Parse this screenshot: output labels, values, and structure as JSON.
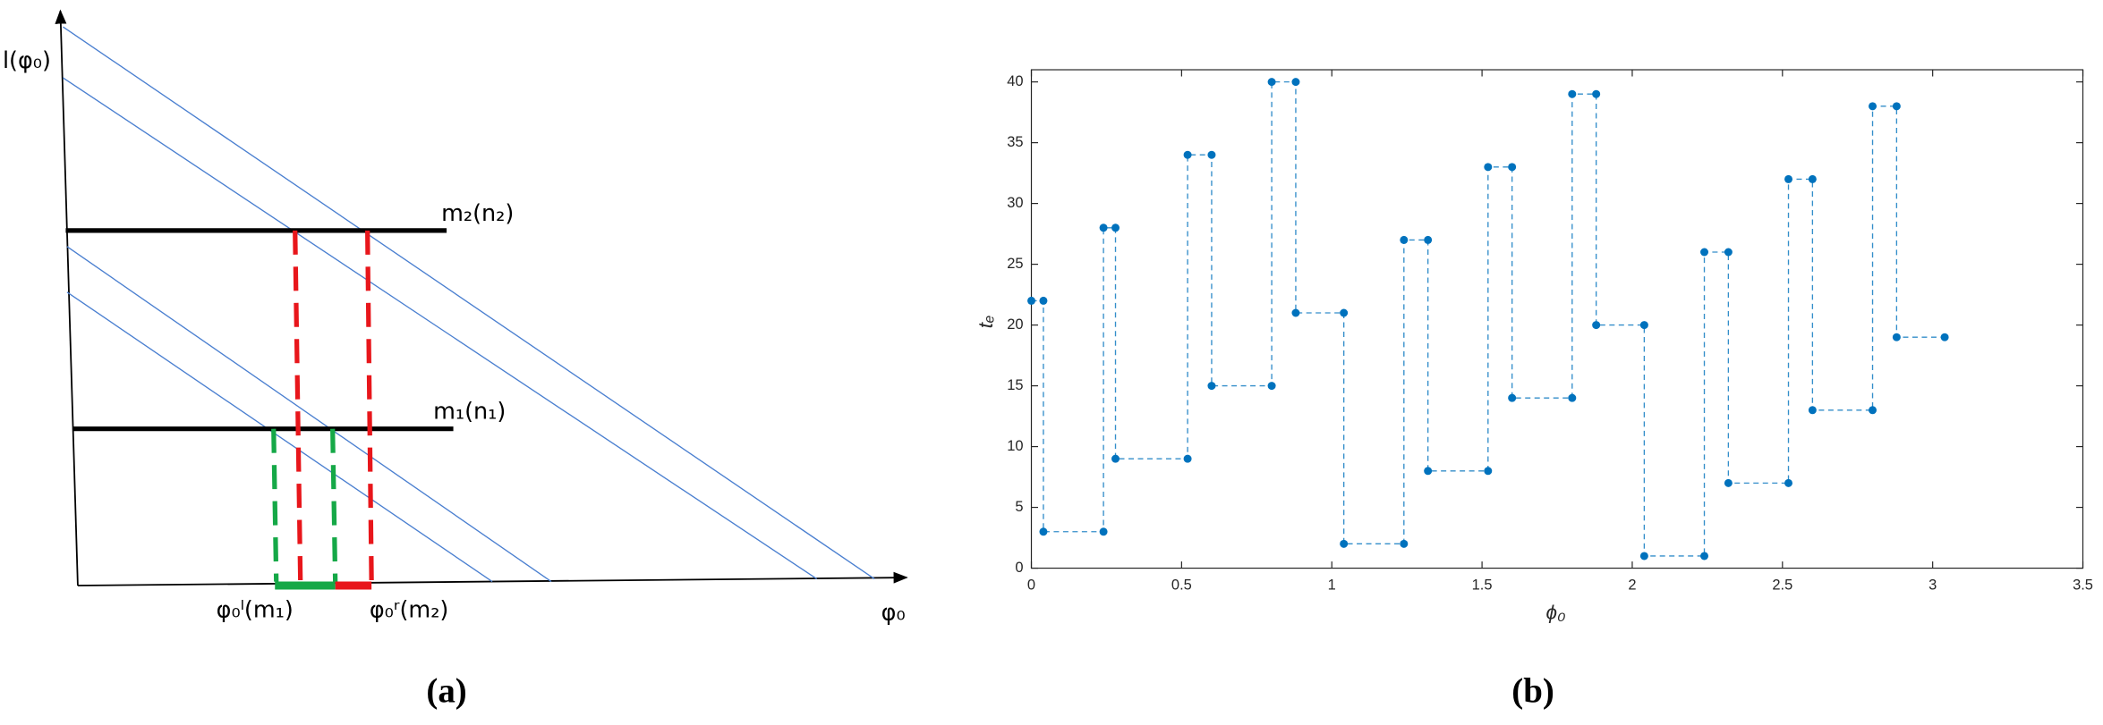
{
  "diagram": {
    "y_axis_label": "l(φ₀)",
    "upper_line_label": "m₂(n₂)",
    "lower_line_label": "m₁(n₁)",
    "left_bound_label": "φ₀ˡ(m₁)",
    "right_bound_label": "φ₀ʳ(m₂)",
    "x_axis_label": "φ₀",
    "panel_label": "(a)"
  },
  "chart_data": {
    "type": "scatter",
    "line": "dashed",
    "color": "#0072bd",
    "panel_label": "(b)",
    "x_label": "ϕ₀",
    "y_label": "tₑ",
    "x": [
      0,
      0.04,
      0.04,
      0.24,
      0.24,
      0.28,
      0.28,
      0.52,
      0.52,
      0.6,
      0.6,
      0.8,
      0.8,
      0.88,
      0.88,
      1.04,
      1.04,
      1.24,
      1.24,
      1.32,
      1.32,
      1.52,
      1.52,
      1.6,
      1.6,
      1.8,
      1.8,
      1.88,
      1.88,
      2.04,
      2.04,
      2.24,
      2.24,
      2.32,
      2.32,
      2.52,
      2.52,
      2.6,
      2.6,
      2.8,
      2.8,
      2.88,
      2.88,
      3.04
    ],
    "values": [
      22,
      22,
      3,
      3,
      28,
      28,
      9,
      9,
      34,
      34,
      15,
      15,
      40,
      40,
      21,
      21,
      2,
      2,
      27,
      27,
      8,
      8,
      33,
      33,
      14,
      14,
      39,
      39,
      20,
      20,
      1,
      1,
      26,
      26,
      7,
      7,
      32,
      32,
      13,
      13,
      38,
      38,
      19,
      19
    ],
    "xlim": [
      0,
      3.5
    ],
    "xticks": [
      0,
      0.5,
      1,
      1.5,
      2,
      2.5,
      3,
      3.5
    ],
    "ylim": [
      0,
      41
    ],
    "yticks": [
      0,
      5,
      10,
      15,
      20,
      25,
      30,
      35,
      40
    ]
  }
}
